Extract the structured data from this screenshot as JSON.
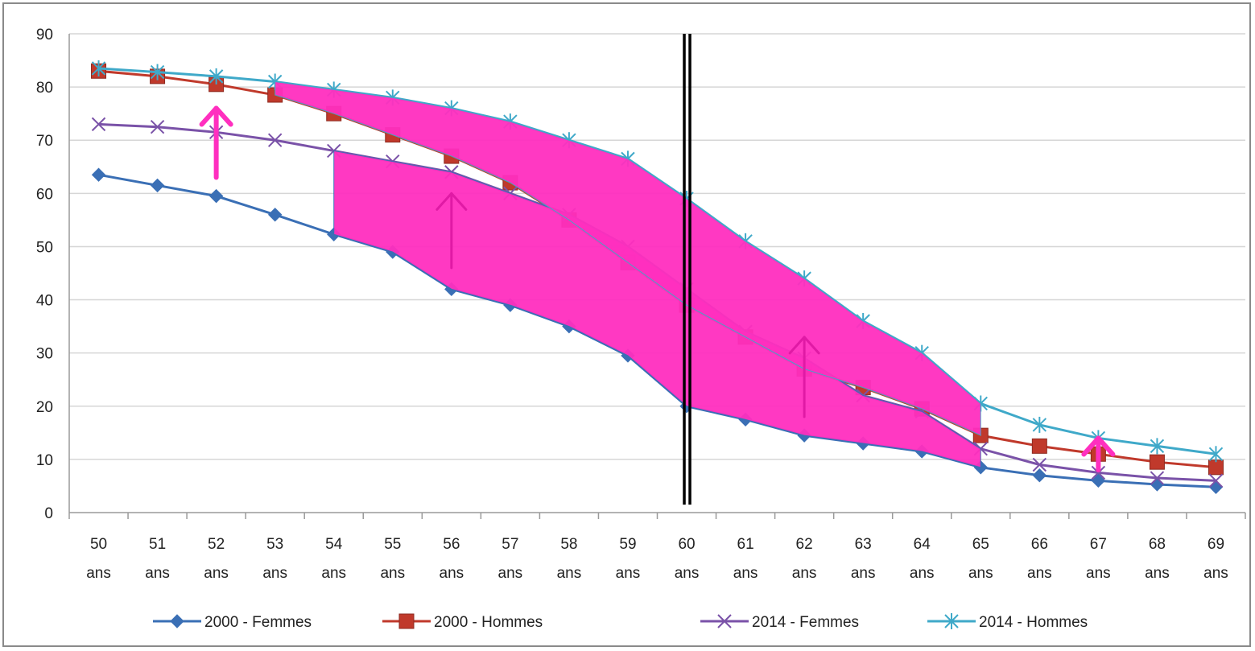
{
  "chart_data": {
    "type": "line",
    "categories": [
      {
        "num": "50",
        "unit": "ans"
      },
      {
        "num": "51",
        "unit": "ans"
      },
      {
        "num": "52",
        "unit": "ans"
      },
      {
        "num": "53",
        "unit": "ans"
      },
      {
        "num": "54",
        "unit": "ans"
      },
      {
        "num": "55",
        "unit": "ans"
      },
      {
        "num": "56",
        "unit": "ans"
      },
      {
        "num": "57",
        "unit": "ans"
      },
      {
        "num": "58",
        "unit": "ans"
      },
      {
        "num": "59",
        "unit": "ans"
      },
      {
        "num": "60",
        "unit": "ans"
      },
      {
        "num": "61",
        "unit": "ans"
      },
      {
        "num": "62",
        "unit": "ans"
      },
      {
        "num": "63",
        "unit": "ans"
      },
      {
        "num": "64",
        "unit": "ans"
      },
      {
        "num": "65",
        "unit": "ans"
      },
      {
        "num": "66",
        "unit": "ans"
      },
      {
        "num": "67",
        "unit": "ans"
      },
      {
        "num": "68",
        "unit": "ans"
      },
      {
        "num": "69",
        "unit": "ans"
      }
    ],
    "ylim": [
      0,
      90
    ],
    "yticks": [
      "0",
      "10",
      "20",
      "30",
      "40",
      "50",
      "60",
      "70",
      "80",
      "90"
    ],
    "grid": true,
    "legend_position": "bottom",
    "series": [
      {
        "name": "2000 - Femmes",
        "color": "#3a6fb5",
        "marker": "diamond",
        "values": [
          63.5,
          61.5,
          59.5,
          56,
          52.3,
          49,
          42,
          39,
          35,
          29.5,
          20,
          17.5,
          14.5,
          13,
          11.5,
          8.5,
          7,
          6,
          5.3,
          4.8
        ]
      },
      {
        "name": "2000 - Hommes",
        "color": "#c0392b",
        "marker": "square",
        "values": [
          83,
          82,
          80.5,
          78.5,
          75,
          71,
          67,
          62,
          55,
          47,
          39,
          33,
          27,
          23.5,
          19.5,
          14.5,
          12.5,
          11,
          9.5,
          8.5
        ]
      },
      {
        "name": "2014 - Femmes",
        "color": "#7a52a8",
        "marker": "x",
        "values": [
          73,
          72.5,
          71.5,
          70,
          68,
          66,
          64,
          60,
          56,
          50,
          42,
          34,
          29,
          22,
          19,
          12,
          9,
          7.5,
          6.5,
          6
        ]
      },
      {
        "name": "2014 - Hommes",
        "color": "#3fa9c9",
        "marker": "star",
        "values": [
          83.5,
          82.8,
          82,
          81,
          79.5,
          78,
          76,
          73.5,
          70,
          66.5,
          59,
          51,
          44,
          36,
          30,
          20.5,
          16.5,
          14,
          12.5,
          11
        ]
      }
    ]
  },
  "annotation_colors": {
    "highlight": "#ff2fbf",
    "divider": "#000000"
  }
}
